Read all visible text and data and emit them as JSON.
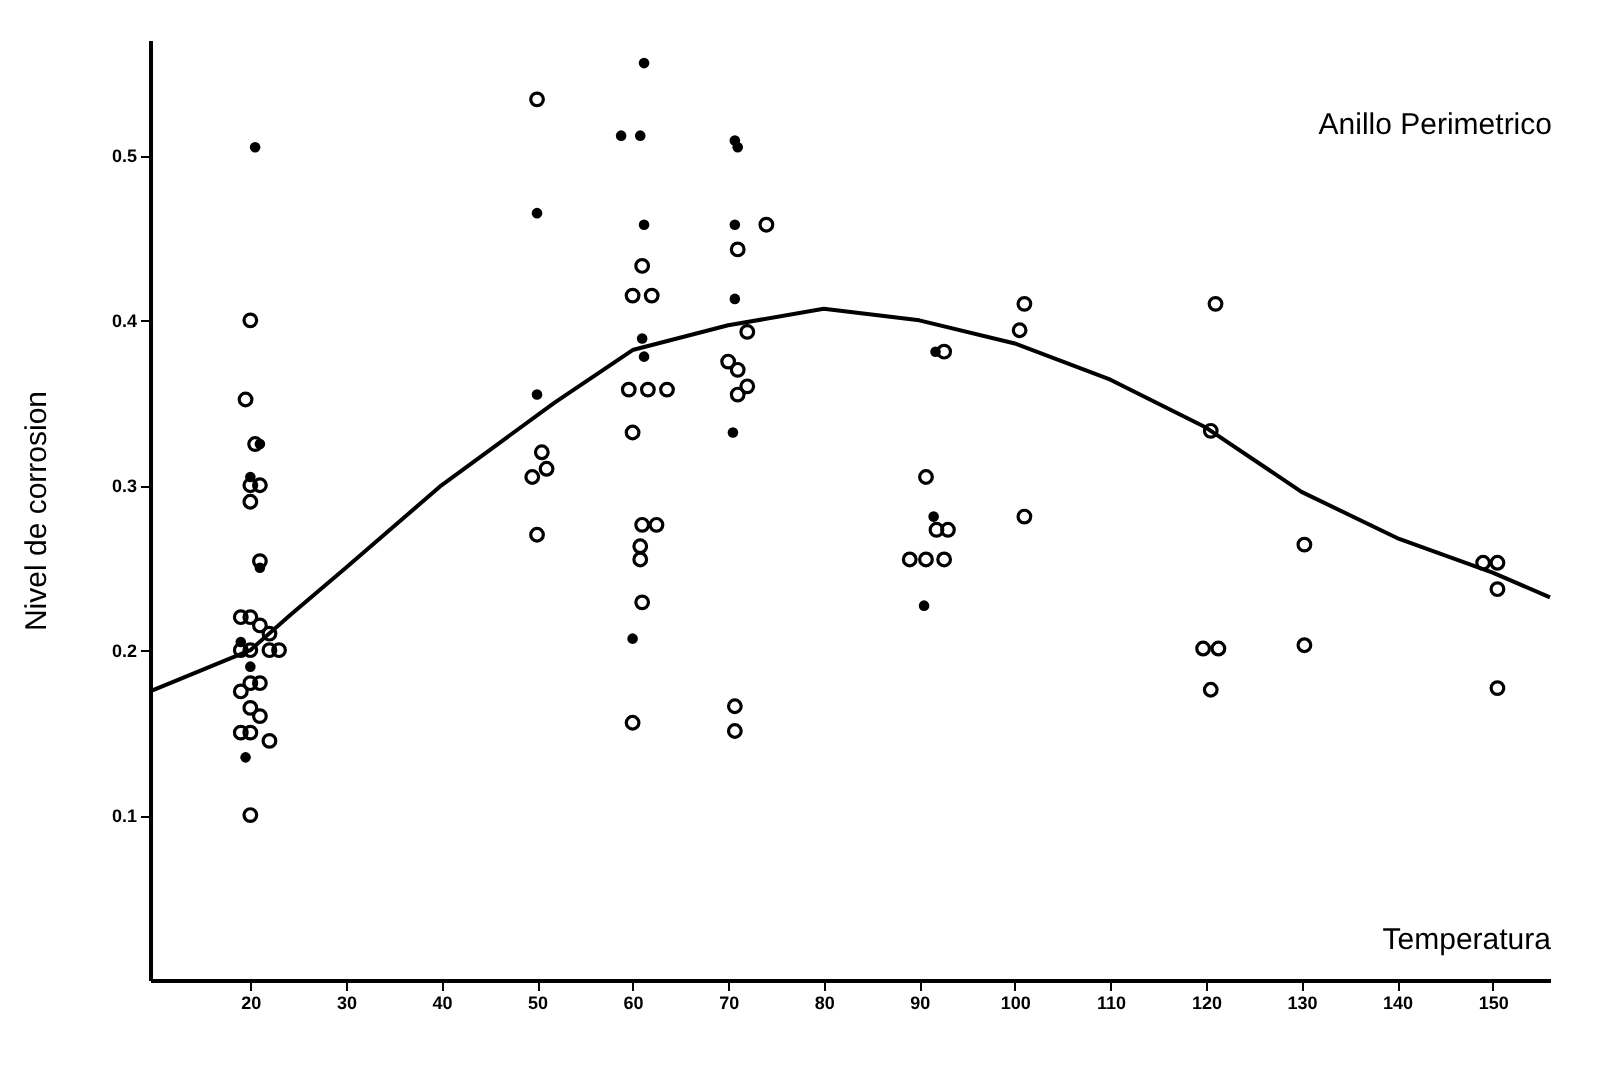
{
  "chart_data": {
    "type": "scatter",
    "title": "Anillo Perimetrico",
    "xlabel": "Temperatura",
    "ylabel": "Nivel de corrosion",
    "xlim": [
      9.5,
      156
    ],
    "ylim": [
      0,
      0.57
    ],
    "xticks": [
      20,
      30,
      40,
      50,
      60,
      70,
      80,
      90,
      100,
      110,
      120,
      130,
      140,
      150
    ],
    "yticks": [
      0.1,
      0.2,
      0.3,
      0.4,
      0.5
    ],
    "grid": false,
    "marker": "circle",
    "series": [
      {
        "color": "#000000",
        "x": [
          20,
          19.5,
          20.5,
          20,
          21,
          20,
          21,
          19,
          20,
          21,
          22,
          19,
          20,
          22,
          23,
          20,
          21,
          19,
          20,
          21,
          19,
          20,
          22,
          20,
          50,
          50.5,
          51,
          49.5,
          50,
          61,
          60,
          62,
          59.6,
          61.6,
          63.6,
          60,
          61,
          62.5,
          60.8,
          60.8,
          61,
          60,
          74,
          71,
          72,
          70,
          71,
          72,
          71,
          70.7,
          70.7,
          92.6,
          90.7,
          91.8,
          93,
          89,
          90.7,
          92.6,
          101,
          100.5,
          101,
          121,
          120.5,
          119.7,
          121.3,
          120.5,
          130.3,
          130.3,
          149,
          150.5,
          150.5,
          150.5
        ],
        "values": [
          0.4,
          0.352,
          0.325,
          0.3,
          0.3,
          0.29,
          0.254,
          0.22,
          0.22,
          0.215,
          0.21,
          0.2,
          0.2,
          0.2,
          0.2,
          0.18,
          0.18,
          0.175,
          0.165,
          0.16,
          0.15,
          0.15,
          0.145,
          0.1,
          0.534,
          0.32,
          0.31,
          0.305,
          0.27,
          0.433,
          0.415,
          0.415,
          0.358,
          0.358,
          0.358,
          0.332,
          0.276,
          0.276,
          0.263,
          0.255,
          0.229,
          0.156,
          0.458,
          0.443,
          0.393,
          0.375,
          0.37,
          0.36,
          0.355,
          0.166,
          0.151,
          0.381,
          0.305,
          0.273,
          0.273,
          0.255,
          0.255,
          0.255,
          0.41,
          0.394,
          0.281,
          0.41,
          0.333,
          0.201,
          0.201,
          0.176,
          0.264,
          0.203,
          0.253,
          0.253,
          0.237,
          0.177
        ]
      },
      {
        "color": "#000000",
        "x": [
          20.5,
          21,
          20,
          21,
          19,
          20,
          19.5,
          50,
          50,
          61.2,
          58.8,
          60.8,
          61.2,
          61,
          61.2,
          60,
          70.7,
          71,
          70.7,
          70.7,
          70.5,
          91.7,
          91.5,
          90.5
        ],
        "values": [
          0.505,
          0.325,
          0.305,
          0.25,
          0.205,
          0.19,
          0.135,
          0.465,
          0.355,
          0.556,
          0.512,
          0.512,
          0.458,
          0.389,
          0.378,
          0.207,
          0.509,
          0.505,
          0.458,
          0.413,
          0.332,
          0.381,
          0.281,
          0.227
        ]
      },
      {
        "type": "line",
        "color": "#000000",
        "marker": "none",
        "line_style": "solid",
        "x": [
          9.5,
          20,
          24.3,
          30,
          40,
          51.8,
          60,
          70,
          80,
          90,
          100,
          110,
          120,
          130,
          140,
          150,
          156
        ],
        "values": [
          0.175,
          0.2,
          0.222,
          0.25,
          0.3,
          0.35,
          0.382,
          0.397,
          0.407,
          0.4,
          0.386,
          0.364,
          0.335,
          0.296,
          0.268,
          0.247,
          0.232
        ]
      }
    ]
  }
}
